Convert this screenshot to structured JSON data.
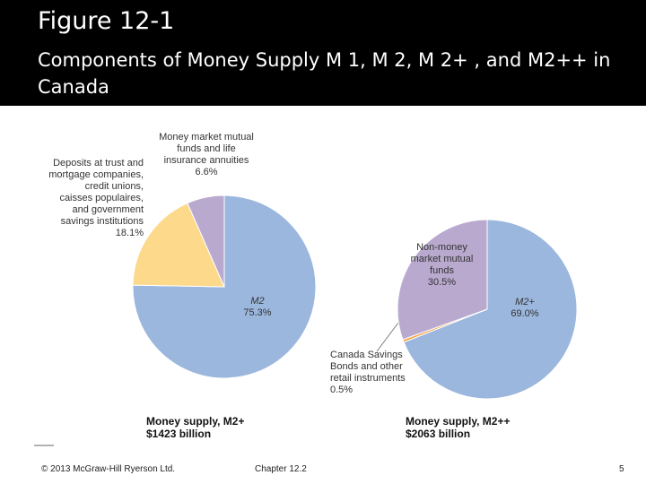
{
  "slide": {
    "title": "Figure 12-1",
    "subtitle": "Components of Money Supply M 1, M 2, M 2+ , and M2++ in Canada",
    "footer_left": "© 2013 McGraw-Hill Ryerson Ltd.",
    "footer_center": "Chapter 12.2",
    "page_number": "5"
  },
  "chart_data": [
    {
      "type": "pie",
      "title": "Money supply, M2+",
      "subtitle": "$1423 billion",
      "categories": [
        "M2",
        "Deposits at trust and\nmortgage companies,\ncredit unions,\ncaisses populaires,\nand government\nsavings institutions",
        "Money market mutual\nfunds and life\ninsurance annuities"
      ],
      "values": [
        75.3,
        18.1,
        6.6
      ],
      "value_labels": [
        "75.3%",
        "18.1%",
        "6.6%"
      ],
      "colors": [
        "#9bb7dd",
        "#fdd98b",
        "#b9a9cf"
      ]
    },
    {
      "type": "pie",
      "title": "Money supply, M2++",
      "subtitle": "$2063 billion",
      "categories": [
        "M2+",
        "Canada Savings\nBonds and other\nretail instruments",
        "Non-money\nmarket mutual\nfunds"
      ],
      "values": [
        69.0,
        0.5,
        30.5
      ],
      "value_labels": [
        "69.0%",
        "0.5%",
        "30.5%"
      ],
      "colors": [
        "#9bb7dd",
        "#f3a54a",
        "#b9a9cf"
      ]
    }
  ]
}
